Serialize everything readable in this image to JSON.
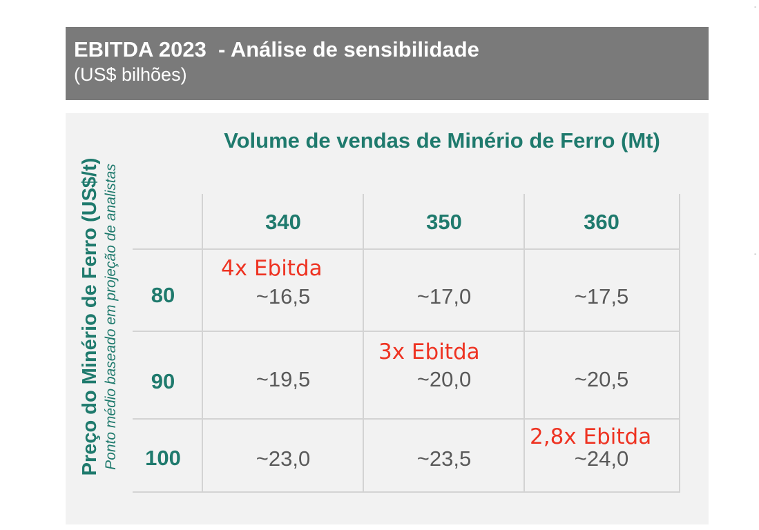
{
  "header": {
    "title": "EBITDA 2023  - Análise de sensibilidade",
    "subtitle": "(US$ bilhões)"
  },
  "table": {
    "column_axis_title": "Volume de vendas de Minério de Ferro (Mt)",
    "row_axis_title": "Preço do Minério de Ferro (US$/t)",
    "row_axis_subtitle": "Ponto médio baseado em projeção de analistas",
    "columns": [
      "340",
      "350",
      "360"
    ],
    "rows": [
      {
        "label": "80",
        "values": [
          "~16,5",
          "~17,0",
          "~17,5"
        ]
      },
      {
        "label": "90",
        "values": [
          "~19,5",
          "~20,0",
          "~20,5"
        ]
      },
      {
        "label": "100",
        "values": [
          "~23,0",
          "~23,5",
          "~24,0"
        ]
      }
    ],
    "notes": [
      {
        "row": "80",
        "column": "340",
        "text": "4x Ebitda",
        "color": "#ee3322"
      },
      {
        "row": "90",
        "column": "350",
        "text": "3x Ebitda",
        "color": "#ee3322"
      },
      {
        "row": "100",
        "column": "360",
        "text": "2,8x Ebitda",
        "color": "#ee3322"
      }
    ]
  },
  "colors": {
    "header_background": "#7a7a7a",
    "panel_background": "#f2f2f2",
    "accent_teal": "#1f7a6d",
    "value_gray": "#595959",
    "highlight_red": "#ee3322"
  }
}
